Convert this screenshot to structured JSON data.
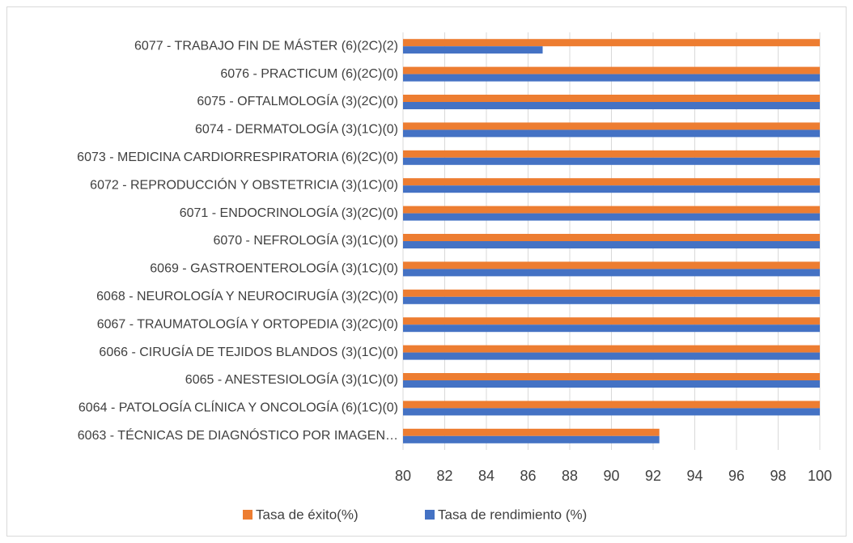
{
  "chart_data": {
    "type": "barh",
    "categories": [
      "6077 - TRABAJO FIN DE MÁSTER (6)(2C)(2)",
      "6076 - PRACTICUM (6)(2C)(0)",
      "6075 - OFTALMOLOGÍA (3)(2C)(0)",
      "6074 - DERMATOLOGÍA (3)(1C)(0)",
      "6073 - MEDICINA CARDIORRESPIRATORIA (6)(2C)(0)",
      "6072 - REPRODUCCIÓN Y OBSTETRICIA (3)(1C)(0)",
      "6071 - ENDOCRINOLOGÍA (3)(2C)(0)",
      "6070 - NEFROLOGÍA (3)(1C)(0)",
      "6069 - GASTROENTEROLOGÍA (3)(1C)(0)",
      "6068 - NEUROLOGÍA Y NEUROCIRUGÍA (3)(2C)(0)",
      "6067 - TRAUMATOLOGÍA Y ORTOPEDIA (3)(2C)(0)",
      "6066 - CIRUGÍA DE TEJIDOS BLANDOS (3)(1C)(0)",
      "6065 - ANESTESIOLOGÍA (3)(1C)(0)",
      "6064 - PATOLOGÍA CLÍNICA Y ONCOLOGÍA (6)(1C)(0)",
      "6063 - TÉCNICAS DE DIAGNÓSTICO POR IMAGEN…"
    ],
    "series": [
      {
        "name": "Tasa de éxito(%)",
        "color": "#ED7D31",
        "values": [
          100,
          100,
          100,
          100,
          100,
          100,
          100,
          100,
          100,
          100,
          100,
          100,
          100,
          100,
          92.3
        ]
      },
      {
        "name": "Tasa de rendimiento (%)",
        "color": "#4472C4",
        "values": [
          86.7,
          100,
          100,
          100,
          100,
          100,
          100,
          100,
          100,
          100,
          100,
          100,
          100,
          100,
          92.3
        ]
      }
    ],
    "xlim": [
      80,
      100
    ],
    "xticks": [
      80,
      82,
      84,
      86,
      88,
      90,
      92,
      94,
      96,
      98,
      100
    ],
    "grid": true,
    "legend": "bottom"
  }
}
